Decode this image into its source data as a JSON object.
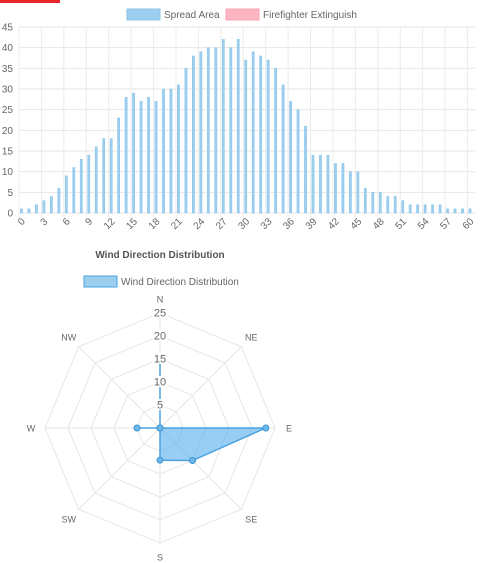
{
  "chart_data": [
    {
      "type": "bar",
      "legend": [
        {
          "label": "Spread Area",
          "color": "#9ccfef",
          "border": "#8bc4ea"
        },
        {
          "label": "Firefighter Extinguish",
          "color": "#fdb5c2",
          "border": "#f9a3b4"
        }
      ],
      "legend_position": "top",
      "x": [
        0,
        1,
        2,
        3,
        4,
        5,
        6,
        7,
        8,
        9,
        10,
        11,
        12,
        13,
        14,
        15,
        16,
        17,
        18,
        19,
        20,
        21,
        22,
        23,
        24,
        25,
        26,
        27,
        28,
        29,
        30,
        31,
        32,
        33,
        34,
        35,
        36,
        37,
        38,
        39,
        40,
        41,
        42,
        43,
        44,
        45,
        46,
        47,
        48,
        49,
        50,
        51,
        52,
        53,
        54,
        55,
        56,
        57,
        58,
        59,
        60
      ],
      "x_tick_labels": [
        "0",
        "3",
        "6",
        "9",
        "12",
        "15",
        "18",
        "21",
        "24",
        "27",
        "30",
        "33",
        "36",
        "39",
        "42",
        "45",
        "48",
        "51",
        "54",
        "57",
        "60"
      ],
      "series": [
        {
          "name": "Spread Area",
          "values": [
            1,
            1,
            2,
            3,
            4,
            6,
            9,
            11,
            13,
            14,
            16,
            18,
            18,
            23,
            28,
            29,
            27,
            28,
            27,
            30,
            30,
            31,
            35,
            38,
            39,
            40,
            40,
            42,
            40,
            42,
            37,
            39,
            38,
            37,
            35,
            31,
            27,
            25,
            21,
            14,
            14,
            14,
            12,
            12,
            10,
            10,
            6,
            5,
            5,
            4,
            4,
            3,
            2,
            2,
            2,
            2,
            2,
            1,
            1,
            1,
            1
          ]
        },
        {
          "name": "Firefighter Extinguish",
          "values": [
            0,
            0,
            0,
            0,
            0,
            0,
            0,
            0,
            0,
            0,
            0,
            0,
            0,
            0,
            0,
            0,
            0,
            0,
            0,
            0,
            0,
            0,
            0,
            0,
            0,
            0,
            0,
            0,
            0,
            0,
            0,
            0,
            0,
            0,
            0,
            0,
            0,
            0,
            0,
            0,
            0,
            0,
            0,
            0,
            0,
            0,
            0,
            0,
            0,
            0,
            0,
            0,
            0,
            0,
            0,
            0,
            0,
            0,
            0,
            0,
            0
          ]
        }
      ],
      "y_ticks": [
        0,
        5,
        10,
        15,
        20,
        25,
        30,
        35,
        40,
        45
      ],
      "ylim": [
        0,
        45
      ],
      "xlabel": "Wind Direction Distribution",
      "grid": true
    },
    {
      "type": "radar",
      "legend": [
        {
          "label": "Wind Direction Distribution",
          "color": "#9ccfef",
          "border": "#4aa3df"
        }
      ],
      "legend_position": "top",
      "categories": [
        "N",
        "NE",
        "E",
        "SE",
        "S",
        "SW",
        "W",
        "NW"
      ],
      "series": [
        {
          "name": "Wind Direction Distribution",
          "values": [
            15,
            0,
            23,
            10,
            7,
            0,
            5,
            0
          ]
        }
      ],
      "r_ticks": [
        5,
        10,
        15,
        20,
        25
      ],
      "rlim": [
        0,
        25
      ],
      "grid": true
    }
  ]
}
